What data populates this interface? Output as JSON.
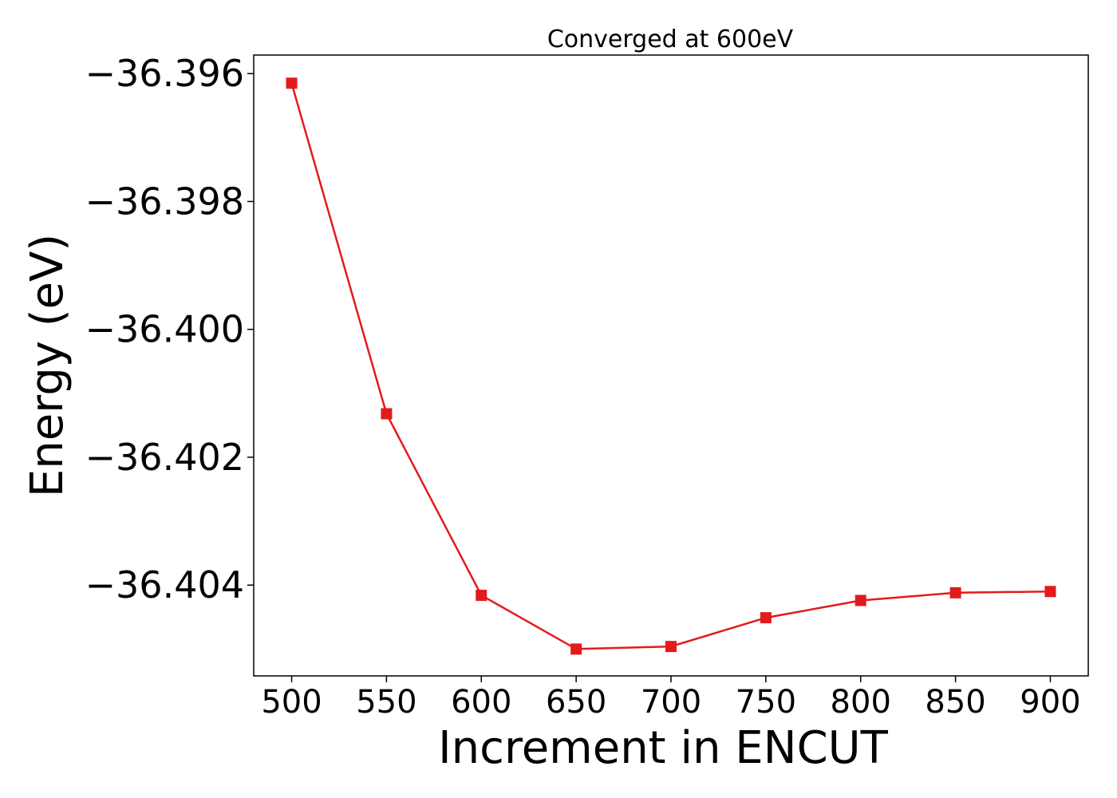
{
  "chart_data": {
    "type": "line",
    "title": "Converged at 600eV",
    "xlabel": "Increment in ENCUT",
    "ylabel": "Energy (eV)",
    "x": [
      500,
      550,
      600,
      650,
      700,
      750,
      800,
      850,
      900
    ],
    "series": [
      {
        "values": [
          -36.39615,
          -36.40132,
          -36.40416,
          -36.405,
          -36.40496,
          -36.40451,
          -36.40424,
          -36.40412,
          -36.4041
        ]
      }
    ],
    "xlim": [
      480,
      920
    ],
    "ylim": [
      -36.40542,
      -36.39571
    ],
    "xticks": [
      500,
      550,
      600,
      650,
      700,
      750,
      800,
      850,
      900
    ],
    "xtick_labels": [
      "500",
      "550",
      "600",
      "650",
      "700",
      "750",
      "800",
      "850",
      "900"
    ],
    "yticks": [
      -36.396,
      -36.398,
      -36.4,
      -36.402,
      -36.404
    ],
    "ytick_labels": [
      "−36.396",
      "−36.398",
      "−36.400",
      "−36.402",
      "−36.404"
    ],
    "grid": false,
    "line_color": "#e31a1c",
    "marker": "square"
  }
}
